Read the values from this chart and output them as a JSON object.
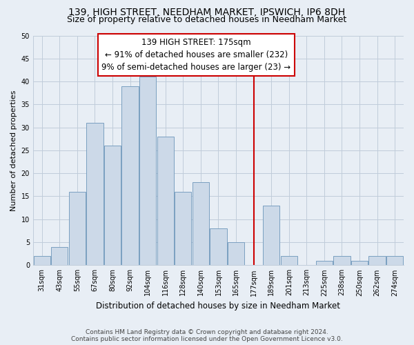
{
  "title": "139, HIGH STREET, NEEDHAM MARKET, IPSWICH, IP6 8DH",
  "subtitle": "Size of property relative to detached houses in Needham Market",
  "xlabel": "Distribution of detached houses by size in Needham Market",
  "ylabel": "Number of detached properties",
  "bar_labels": [
    "31sqm",
    "43sqm",
    "55sqm",
    "67sqm",
    "80sqm",
    "92sqm",
    "104sqm",
    "116sqm",
    "128sqm",
    "140sqm",
    "153sqm",
    "165sqm",
    "177sqm",
    "189sqm",
    "201sqm",
    "213sqm",
    "225sqm",
    "238sqm",
    "250sqm",
    "262sqm",
    "274sqm"
  ],
  "bar_values": [
    2,
    4,
    16,
    31,
    26,
    39,
    41,
    28,
    16,
    18,
    8,
    5,
    0,
    13,
    2,
    0,
    1,
    2,
    1,
    2,
    2
  ],
  "bar_color": "#ccd9e8",
  "bar_edge_color": "#7a9fc0",
  "vline_x_index": 12,
  "vline_color": "#cc0000",
  "annotation_text": "139 HIGH STREET: 175sqm\n← 91% of detached houses are smaller (232)\n9% of semi-detached houses are larger (23) →",
  "ylim": [
    0,
    50
  ],
  "yticks": [
    0,
    5,
    10,
    15,
    20,
    25,
    30,
    35,
    40,
    45,
    50
  ],
  "footnote": "Contains HM Land Registry data © Crown copyright and database right 2024.\nContains public sector information licensed under the Open Government Licence v3.0.",
  "bg_color": "#e8eef5",
  "plot_bg_color": "#e8eef5",
  "grid_color": "#c0ccda",
  "title_fontsize": 10,
  "subtitle_fontsize": 9,
  "xlabel_fontsize": 8.5,
  "ylabel_fontsize": 8,
  "tick_fontsize": 7,
  "annotation_fontsize": 8.5,
  "footnote_fontsize": 6.5
}
